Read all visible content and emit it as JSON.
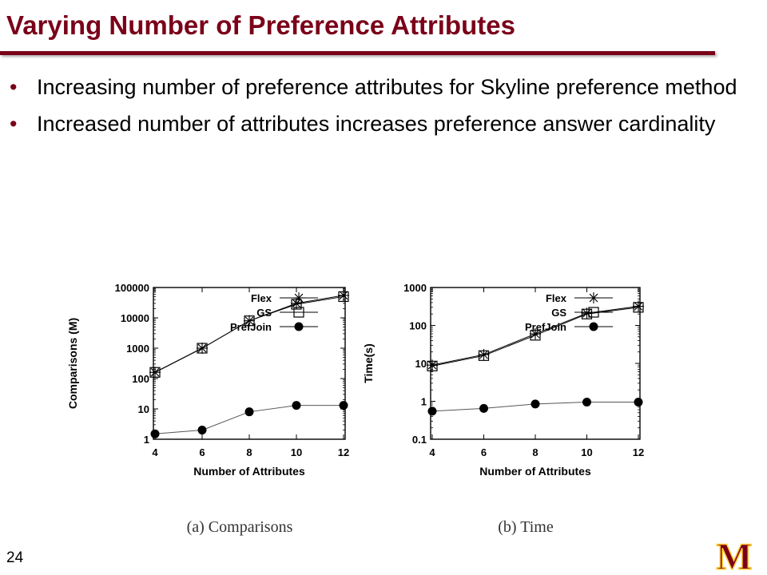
{
  "slide": {
    "title": "Varying Number of Preference Attributes",
    "bullets": [
      "Increasing number of preference attributes for Skyline preference method",
      "Increased number of attributes increases preference answer cardinality"
    ],
    "page_number": "24",
    "logo_text": "M"
  },
  "colors": {
    "brand": "#7a0019",
    "gold": "#ffcc33"
  },
  "chart_data": [
    {
      "type": "line",
      "caption": "(a) Comparisons",
      "xlabel": "Number of Attributes",
      "ylabel": "Comparisons (M)",
      "yscale": "log",
      "ylim": [
        1,
        100000
      ],
      "x": [
        4,
        6,
        8,
        10,
        12
      ],
      "yticks": [
        "1",
        "10",
        "100",
        "1000",
        "10000",
        "100000"
      ],
      "legend": "top-right",
      "series": [
        {
          "name": "Flex",
          "marker": "star",
          "values": [
            160,
            1000,
            8000,
            30000,
            55000
          ]
        },
        {
          "name": "GS",
          "marker": "square",
          "values": [
            160,
            1000,
            8000,
            28000,
            50000
          ]
        },
        {
          "name": "PrefJoin",
          "marker": "circle",
          "values": [
            1.5,
            2,
            8,
            13,
            13
          ]
        }
      ]
    },
    {
      "type": "line",
      "caption": "(b) Time",
      "xlabel": "Number of Attributes",
      "ylabel": "Time(s)",
      "yscale": "log",
      "ylim": [
        0.1,
        1000
      ],
      "x": [
        4,
        6,
        8,
        10,
        12
      ],
      "yticks": [
        "0.1",
        "1",
        "10",
        "100",
        "1000"
      ],
      "legend": "top-right",
      "series": [
        {
          "name": "Flex",
          "marker": "star",
          "values": [
            9,
            17,
            60,
            210,
            320
          ]
        },
        {
          "name": "GS",
          "marker": "square",
          "values": [
            8.5,
            16,
            55,
            200,
            300
          ]
        },
        {
          "name": "PrefJoin",
          "marker": "circle",
          "values": [
            0.55,
            0.65,
            0.85,
            0.95,
            0.95
          ]
        }
      ]
    }
  ]
}
